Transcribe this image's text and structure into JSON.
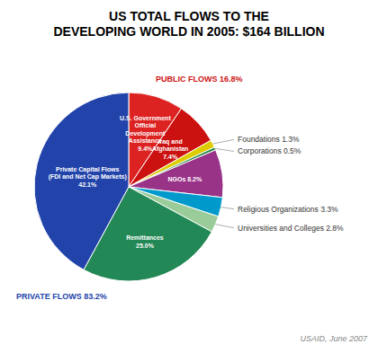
{
  "chart_data": {
    "type": "pie",
    "title": "US TOTAL FLOWS TO THE\nDEVELOPING WORLD IN 2005: $164 BILLION",
    "categories": [
      "U.S. Government\nOfficial\nDevelopment\nAssistance\n9.4%",
      "Iraq and\nAfghanistan\n7.4%",
      "Foundations 1.3%",
      "Corporations 0.5%",
      "NGOs 8.2%",
      "Religious Organizations 3.3%",
      "Universities and Colleges 2.8%",
      "Remittances\n25.0%",
      "Private Capital Flows\n(FDI and Net Cap Markets)\n42.1%"
    ],
    "values": [
      9.4,
      7.4,
      1.3,
      0.5,
      8.2,
      3.3,
      2.8,
      25.0,
      42.1
    ],
    "colors": [
      "#DD2222",
      "#CC1111",
      "#DDCC00",
      "#228844",
      "#993388",
      "#0099CC",
      "#99CC99",
      "#228855",
      "#2244AA"
    ],
    "annotations": [
      {
        "text": "PUBLIC FLOWS 16.8%",
        "color": "#CC1111"
      },
      {
        "text": "PRIVATE FLOWS 83.2%",
        "color": "#2244AA"
      },
      {
        "text": "USAID, June 2007",
        "color": "#888888"
      }
    ]
  }
}
